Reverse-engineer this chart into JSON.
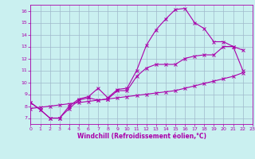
{
  "xlabel": "Windchill (Refroidissement éolien,°C)",
  "bg_color": "#caf0f0",
  "grid_color": "#a0b8cc",
  "line_color": "#aa00aa",
  "xlim": [
    0,
    23
  ],
  "ylim": [
    6.5,
    16.5
  ],
  "xticks": [
    0,
    1,
    2,
    3,
    4,
    5,
    6,
    7,
    8,
    9,
    10,
    11,
    12,
    13,
    14,
    15,
    16,
    17,
    18,
    19,
    20,
    21,
    22,
    23
  ],
  "yticks": [
    7,
    8,
    9,
    10,
    11,
    12,
    13,
    14,
    15,
    16
  ],
  "line1_x": [
    0,
    1,
    2,
    3,
    4,
    5,
    6,
    7,
    8,
    9,
    10,
    11,
    12,
    13,
    14,
    15,
    16,
    17,
    18,
    19,
    20,
    21,
    22
  ],
  "line1_y": [
    8.3,
    7.7,
    7.0,
    7.0,
    8.0,
    8.6,
    8.8,
    9.5,
    8.7,
    9.4,
    9.5,
    11.0,
    13.1,
    14.4,
    15.3,
    16.1,
    16.2,
    15.0,
    14.5,
    13.4,
    13.4,
    13.0,
    12.7
  ],
  "line2_x": [
    0,
    1,
    2,
    3,
    4,
    5,
    6,
    7,
    8,
    9,
    10,
    11,
    12,
    13,
    14,
    15,
    16,
    17,
    18,
    19,
    20,
    21,
    22
  ],
  "line2_y": [
    8.3,
    7.7,
    7.0,
    7.0,
    7.8,
    8.5,
    8.7,
    8.5,
    8.6,
    9.3,
    9.3,
    10.5,
    11.2,
    11.5,
    11.5,
    11.5,
    12.0,
    12.2,
    12.3,
    12.3,
    13.0,
    13.0,
    11.0
  ],
  "line3_x": [
    0,
    1,
    2,
    3,
    4,
    5,
    6,
    7,
    8,
    9,
    10,
    11,
    12,
    13,
    14,
    15,
    16,
    17,
    18,
    19,
    20,
    21,
    22
  ],
  "line3_y": [
    7.8,
    7.9,
    8.0,
    8.1,
    8.2,
    8.3,
    8.4,
    8.5,
    8.6,
    8.7,
    8.8,
    8.9,
    9.0,
    9.1,
    9.2,
    9.3,
    9.5,
    9.7,
    9.9,
    10.1,
    10.3,
    10.5,
    10.8
  ]
}
